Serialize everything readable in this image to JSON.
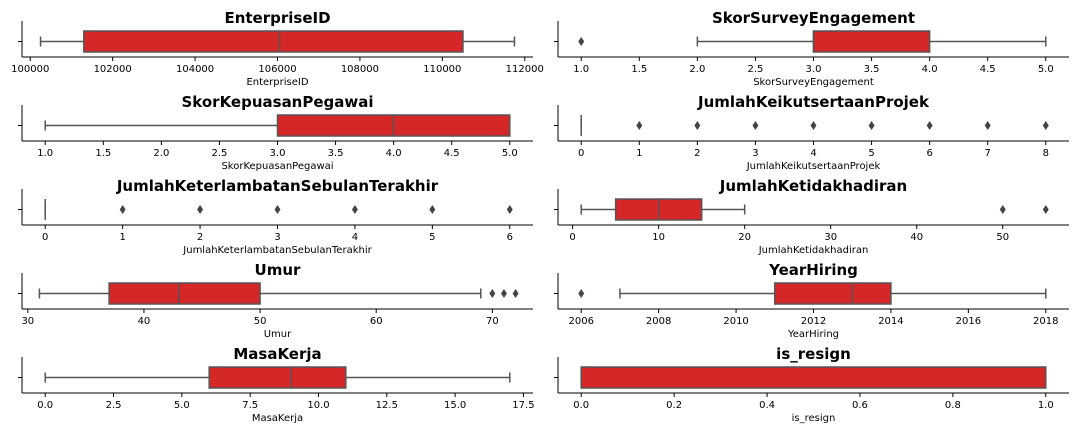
{
  "colors": {
    "box_fill": "#d62728",
    "line": "#555555",
    "axis": "#000000"
  },
  "chart_data": [
    {
      "type": "boxplot",
      "title": "EnterpriseID",
      "xlabel": "EnterpriseID",
      "xlim": [
        99800,
        112200
      ],
      "ticks": [
        100000,
        102000,
        104000,
        106000,
        108000,
        110000,
        112000
      ],
      "tick_labels": [
        "100000",
        "102000",
        "104000",
        "106000",
        "108000",
        "110000",
        "112000"
      ],
      "whisker_low": 100250,
      "q1": 101300,
      "median": 106050,
      "q3": 110500,
      "whisker_high": 111750,
      "outliers": []
    },
    {
      "type": "boxplot",
      "title": "SkorSurveyEngagement",
      "xlabel": "SkorSurveyEngagement",
      "xlim": [
        0.8,
        5.2
      ],
      "ticks": [
        1.0,
        1.5,
        2.0,
        2.5,
        3.0,
        3.5,
        4.0,
        4.5,
        5.0
      ],
      "tick_labels": [
        "1.0",
        "1.5",
        "2.0",
        "2.5",
        "3.0",
        "3.5",
        "4.0",
        "4.5",
        "5.0"
      ],
      "whisker_low": 2.0,
      "q1": 3.0,
      "median": 3.0,
      "q3": 4.0,
      "whisker_high": 5.0,
      "outliers": [
        1.0
      ]
    },
    {
      "type": "boxplot",
      "title": "SkorKepuasanPegawai",
      "xlabel": "SkorKepuasanPegawai",
      "xlim": [
        0.8,
        5.2
      ],
      "ticks": [
        1.0,
        1.5,
        2.0,
        2.5,
        3.0,
        3.5,
        4.0,
        4.5,
        5.0
      ],
      "tick_labels": [
        "1.0",
        "1.5",
        "2.0",
        "2.5",
        "3.0",
        "3.5",
        "4.0",
        "4.5",
        "5.0"
      ],
      "whisker_low": 1.0,
      "q1": 3.0,
      "median": 4.0,
      "q3": 5.0,
      "whisker_high": 5.0,
      "outliers": []
    },
    {
      "type": "boxplot",
      "title": "JumlahKeikutsertaanProjek",
      "xlabel": "JumlahKeikutsertaanProjek",
      "xlim": [
        -0.4,
        8.4
      ],
      "ticks": [
        0,
        1,
        2,
        3,
        4,
        5,
        6,
        7,
        8
      ],
      "tick_labels": [
        "0",
        "1",
        "2",
        "3",
        "4",
        "5",
        "6",
        "7",
        "8"
      ],
      "whisker_low": 0,
      "q1": 0,
      "median": 0,
      "q3": 0,
      "whisker_high": 0,
      "outliers": [
        1,
        2,
        3,
        4,
        5,
        6,
        7,
        8
      ]
    },
    {
      "type": "boxplot",
      "title": "JumlahKeterlambatanSebulanTerakhir",
      "xlabel": "JumlahKeterlambatanSebulanTerakhir",
      "xlim": [
        -0.3,
        6.3
      ],
      "ticks": [
        0,
        1,
        2,
        3,
        4,
        5,
        6
      ],
      "tick_labels": [
        "0",
        "1",
        "2",
        "3",
        "4",
        "5",
        "6"
      ],
      "whisker_low": 0,
      "q1": 0,
      "median": 0,
      "q3": 0,
      "whisker_high": 0,
      "outliers": [
        1,
        2,
        3,
        4,
        5,
        6
      ]
    },
    {
      "type": "boxplot",
      "title": "JumlahKetidakhadiran",
      "xlabel": "JumlahKetidakhadiran",
      "xlim": [
        -1.7,
        57.7
      ],
      "ticks": [
        0,
        10,
        20,
        30,
        40,
        50
      ],
      "tick_labels": [
        "0",
        "10",
        "20",
        "30",
        "40",
        "50"
      ],
      "whisker_low": 1,
      "q1": 5,
      "median": 10,
      "q3": 15,
      "whisker_high": 20,
      "outliers": [
        50,
        55
      ]
    },
    {
      "type": "boxplot",
      "title": "Umur",
      "xlabel": "Umur",
      "xlim": [
        29.5,
        73.5
      ],
      "ticks": [
        30,
        40,
        50,
        60,
        70
      ],
      "tick_labels": [
        "30",
        "40",
        "50",
        "60",
        "70"
      ],
      "whisker_low": 31,
      "q1": 37,
      "median": 43,
      "q3": 50,
      "whisker_high": 69,
      "outliers": [
        70,
        71,
        72
      ]
    },
    {
      "type": "boxplot",
      "title": "YearHiring",
      "xlabel": "YearHiring",
      "xlim": [
        2005.4,
        2018.6
      ],
      "ticks": [
        2006,
        2008,
        2010,
        2012,
        2014,
        2016,
        2018
      ],
      "tick_labels": [
        "2006",
        "2008",
        "2010",
        "2012",
        "2014",
        "2016",
        "2018"
      ],
      "whisker_low": 2007,
      "q1": 2011,
      "median": 2013,
      "q3": 2014,
      "whisker_high": 2018,
      "outliers": [
        2006
      ]
    },
    {
      "type": "boxplot",
      "title": "MasaKerja",
      "xlabel": "MasaKerja",
      "xlim": [
        -0.85,
        17.85
      ],
      "ticks": [
        0.0,
        2.5,
        5.0,
        7.5,
        10.0,
        12.5,
        15.0,
        17.5
      ],
      "tick_labels": [
        "0.0",
        "2.5",
        "5.0",
        "7.5",
        "10.0",
        "12.5",
        "15.0",
        "17.5"
      ],
      "whisker_low": 0,
      "q1": 6,
      "median": 9,
      "q3": 11,
      "whisker_high": 17,
      "outliers": []
    },
    {
      "type": "boxplot",
      "title": "is_resign",
      "xlabel": "is_resign",
      "xlim": [
        -0.05,
        1.05
      ],
      "ticks": [
        0.0,
        0.2,
        0.4,
        0.6,
        0.8,
        1.0
      ],
      "tick_labels": [
        "0.0",
        "0.2",
        "0.4",
        "0.6",
        "0.8",
        "1.0"
      ],
      "whisker_low": 0,
      "q1": 0,
      "median": 0,
      "q3": 1,
      "whisker_high": 1,
      "outliers": []
    }
  ]
}
